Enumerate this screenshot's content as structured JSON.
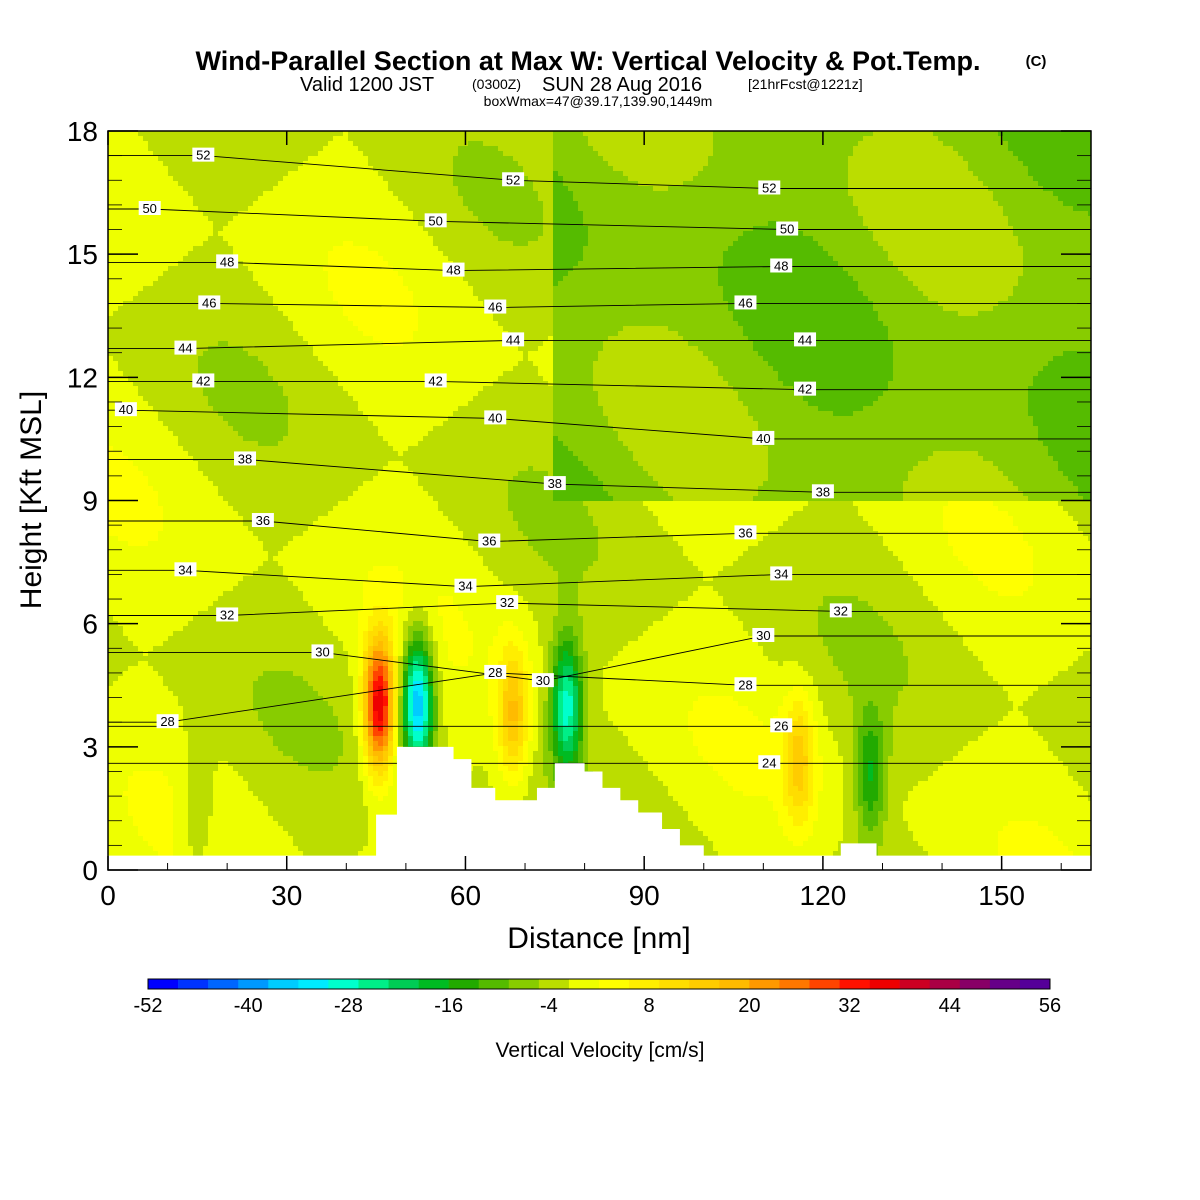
{
  "header": {
    "title": "Wind-Parallel Section at Max W: Vertical Velocity & Pot.Temp.",
    "title_mark": "(C)",
    "valid_a": "Valid 1200 JST",
    "valid_b": "(0300Z)",
    "valid_c": "SUN 28 Aug 2016",
    "valid_d": "[21hrFcst@1221z]",
    "box_info": "boxWmax=47@39.17,139.90,1449m"
  },
  "chart_data": {
    "type": "heatmap",
    "xlabel": "Distance [nm]",
    "ylabel": "Height [Kft MSL]",
    "xlim": [
      0,
      165
    ],
    "ylim": [
      0,
      18
    ],
    "x_ticks": [
      "0",
      "30",
      "60",
      "90",
      "120",
      "150"
    ],
    "y_ticks": [
      "0",
      "3",
      "6",
      "9",
      "12",
      "15",
      "18"
    ],
    "colorbar": {
      "label": "Vertical Velocity [cm/s]",
      "tick_labels": [
        "-52",
        "-40",
        "-28",
        "-16",
        "-4",
        "8",
        "20",
        "32",
        "44",
        "56"
      ],
      "levels_min": -52,
      "levels_max": 56,
      "level_step": 4,
      "colors": [
        "#0000ff",
        "#0033ff",
        "#0066ff",
        "#0099ff",
        "#00ccff",
        "#00ebff",
        "#00ffcc",
        "#00ee88",
        "#00cc55",
        "#00bb22",
        "#22aa00",
        "#55bb00",
        "#88cc00",
        "#bbdd00",
        "#eeff00",
        "#ffff00",
        "#ffee00",
        "#ffdd00",
        "#ffcc00",
        "#ffbb00",
        "#ff9900",
        "#ff7700",
        "#ff4400",
        "#ff1100",
        "#ee0000",
        "#cc0022",
        "#aa0044",
        "#880066",
        "#660088",
        "#550099"
      ]
    },
    "terrain_kft": [
      [
        0,
        0.35
      ],
      [
        45,
        0.35
      ],
      [
        45,
        1.35
      ],
      [
        48.5,
        1.35
      ],
      [
        48.5,
        3.0
      ],
      [
        58,
        3.0
      ],
      [
        58,
        2.7
      ],
      [
        61,
        2.7
      ],
      [
        61,
        2.0
      ],
      [
        65,
        2.0
      ],
      [
        65,
        1.7
      ],
      [
        70,
        1.7
      ],
      [
        70,
        1.7
      ],
      [
        72,
        1.7
      ],
      [
        72,
        2.0
      ],
      [
        75,
        2.0
      ],
      [
        75,
        2.6
      ],
      [
        80,
        2.6
      ],
      [
        80,
        2.4
      ],
      [
        83,
        2.4
      ],
      [
        83,
        2.0
      ],
      [
        86,
        2.0
      ],
      [
        86,
        1.7
      ],
      [
        89,
        1.7
      ],
      [
        89,
        1.4
      ],
      [
        93,
        1.4
      ],
      [
        93,
        1.0
      ],
      [
        96,
        1.0
      ],
      [
        96,
        0.6
      ],
      [
        100,
        0.6
      ],
      [
        100,
        0.35
      ],
      [
        123,
        0.35
      ],
      [
        123,
        0.65
      ],
      [
        129,
        0.65
      ],
      [
        129,
        0.35
      ],
      [
        165,
        0.35
      ]
    ],
    "vertical_velocity_features": [
      {
        "x": 45.5,
        "z": 4.0,
        "w": 44,
        "note": "updraft"
      },
      {
        "x": 52,
        "z": 4.1,
        "w": -40,
        "note": "downdraft"
      },
      {
        "x": 68,
        "z": 3.8,
        "w": 20,
        "note": "updraft"
      },
      {
        "x": 77,
        "z": 4.0,
        "w": -30,
        "note": "downdraft"
      },
      {
        "x": 116,
        "z": 2.7,
        "w": 16,
        "note": "updraft"
      },
      {
        "x": 128,
        "z": 2.3,
        "w": -16,
        "note": "downdraft"
      },
      {
        "x": 15,
        "z": 1.5,
        "w": -8,
        "note": "weak sink"
      }
    ],
    "theta_contours": [
      {
        "value": 24,
        "label_at": [
          111,
          2.6
        ]
      },
      {
        "value": 26,
        "label_at": [
          113,
          3.5
        ]
      },
      {
        "value": 28,
        "label_at": [
          10,
          3.6
        ]
      },
      {
        "value": 28,
        "label_at": [
          65,
          4.8
        ]
      },
      {
        "value": 28,
        "label_at": [
          107,
          4.5
        ]
      },
      {
        "value": 30,
        "label_at": [
          36,
          5.3
        ]
      },
      {
        "value": 30,
        "label_at": [
          73,
          4.6
        ]
      },
      {
        "value": 30,
        "label_at": [
          110,
          5.7
        ]
      },
      {
        "value": 32,
        "label_at": [
          20,
          6.2
        ]
      },
      {
        "value": 32,
        "label_at": [
          67,
          6.5
        ]
      },
      {
        "value": 32,
        "label_at": [
          123,
          6.3
        ]
      },
      {
        "value": 34,
        "label_at": [
          13,
          7.3
        ]
      },
      {
        "value": 34,
        "label_at": [
          60,
          6.9
        ]
      },
      {
        "value": 34,
        "label_at": [
          113,
          7.2
        ]
      },
      {
        "value": 36,
        "label_at": [
          26,
          8.5
        ]
      },
      {
        "value": 36,
        "label_at": [
          64,
          8.0
        ]
      },
      {
        "value": 36,
        "label_at": [
          107,
          8.2
        ]
      },
      {
        "value": 38,
        "label_at": [
          23,
          10.0
        ]
      },
      {
        "value": 38,
        "label_at": [
          75,
          9.4
        ]
      },
      {
        "value": 38,
        "label_at": [
          120,
          9.2
        ]
      },
      {
        "value": 40,
        "label_at": [
          3,
          11.2
        ]
      },
      {
        "value": 40,
        "label_at": [
          65,
          11.0
        ]
      },
      {
        "value": 40,
        "label_at": [
          110,
          10.5
        ]
      },
      {
        "value": 42,
        "label_at": [
          16,
          11.9
        ]
      },
      {
        "value": 42,
        "label_at": [
          55,
          11.9
        ]
      },
      {
        "value": 42,
        "label_at": [
          117,
          11.7
        ]
      },
      {
        "value": 44,
        "label_at": [
          13,
          12.7
        ]
      },
      {
        "value": 44,
        "label_at": [
          68,
          12.9
        ]
      },
      {
        "value": 44,
        "label_at": [
          117,
          12.9
        ]
      },
      {
        "value": 46,
        "label_at": [
          17,
          13.8
        ]
      },
      {
        "value": 46,
        "label_at": [
          65,
          13.7
        ]
      },
      {
        "value": 46,
        "label_at": [
          107,
          13.8
        ]
      },
      {
        "value": 48,
        "label_at": [
          20,
          14.8
        ]
      },
      {
        "value": 48,
        "label_at": [
          58,
          14.6
        ]
      },
      {
        "value": 48,
        "label_at": [
          113,
          14.7
        ]
      },
      {
        "value": 50,
        "label_at": [
          7,
          16.1
        ]
      },
      {
        "value": 50,
        "label_at": [
          55,
          15.8
        ]
      },
      {
        "value": 50,
        "label_at": [
          114,
          15.6
        ]
      },
      {
        "value": 52,
        "label_at": [
          16,
          17.4
        ]
      },
      {
        "value": 52,
        "label_at": [
          68,
          16.8
        ]
      },
      {
        "value": 52,
        "label_at": [
          111,
          16.6
        ]
      }
    ]
  }
}
